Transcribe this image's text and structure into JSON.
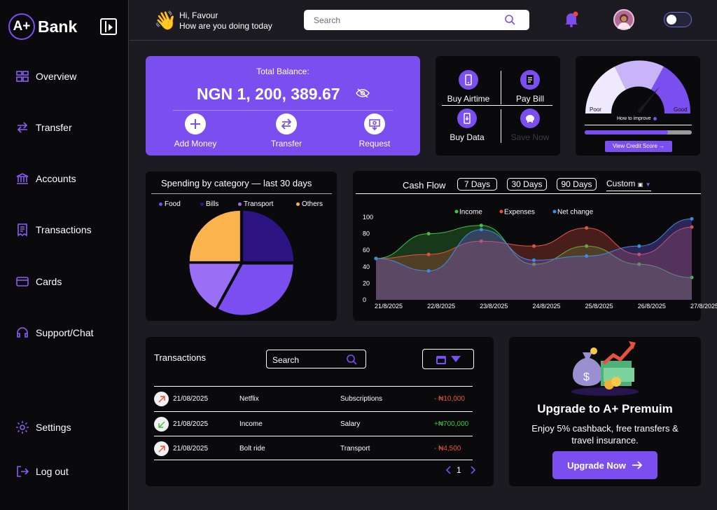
{
  "sidebar": {
    "logo_badge": "A+",
    "logo_text": "Bank",
    "items": [
      {
        "label": "Overview",
        "icon": "grid-icon"
      },
      {
        "label": "Transfer",
        "icon": "transfer-arrows-icon"
      },
      {
        "label": "Accounts",
        "icon": "bank-icon"
      },
      {
        "label": "Transactions",
        "icon": "receipt-icon"
      },
      {
        "label": "Cards",
        "icon": "card-icon"
      },
      {
        "label": "Support/Chat",
        "icon": "headset-icon"
      },
      {
        "label": "Settings",
        "icon": "gear-icon"
      },
      {
        "label": "Log out",
        "icon": "logout-icon"
      }
    ]
  },
  "header": {
    "greeting": "Hi, Favour",
    "subgreeting": "How are you doing today",
    "search_placeholder": "Search"
  },
  "balance": {
    "label": "Total Balance:",
    "amount": "NGN 1, 200, 389.67",
    "actions": [
      "Add Money",
      "Transfer",
      "Request"
    ]
  },
  "quick_actions": [
    "Buy Airtime",
    "Pay Bill",
    "Buy Data",
    "Save Now"
  ],
  "credit": {
    "poor": "Poor",
    "good": "Good",
    "hint": "How to improve",
    "button": "View Credit Score →",
    "score_fraction": 0.72,
    "bar_fraction": 0.78
  },
  "spending": {
    "title": "Spending by category — last 30 days",
    "legend": [
      "Food",
      "Bills",
      "Transport",
      "Others"
    ]
  },
  "cashflow": {
    "title": "Cash Flow",
    "ranges": [
      "7 Days",
      "30 Days",
      "90 Days"
    ],
    "custom": "Custom"
  },
  "transactions": {
    "title": "Transactions",
    "search_placeholder": "Search",
    "rows": [
      {
        "date": "21/08/2025",
        "name": "Netflix",
        "category": "Subscriptions",
        "amount": "- ₦10,000",
        "type": "out"
      },
      {
        "date": "21/08/2025",
        "name": "Income",
        "category": "Salary",
        "amount": "+₦700,000",
        "type": "in"
      },
      {
        "date": "21/08/2025",
        "name": "Bolt ride",
        "category": "Transport",
        "amount": "- ₦4,500",
        "type": "out"
      }
    ],
    "page": "1"
  },
  "promo": {
    "title": "Upgrade to A+ Premuim",
    "text": "Enjoy 5% cashback, free transfers & travel insurance.",
    "button": "Upgrade Now"
  },
  "chart_data": [
    {
      "type": "pie",
      "title": "Spending by category — last 30 days",
      "categories": [
        "Food",
        "Bills",
        "Transport",
        "Others"
      ],
      "values": [
        33,
        25,
        17,
        25
      ],
      "colors": [
        "#7b4ef0",
        "#2c1482",
        "#9b6ff5",
        "#fbb34d"
      ]
    },
    {
      "type": "line",
      "title": "Cash Flow",
      "x": [
        "21/8/2025",
        "22/8/2025",
        "23/8/2025",
        "24/8/2025",
        "25/8/2025",
        "26/8/2025",
        "27/8/2025"
      ],
      "ylim": [
        0,
        100
      ],
      "yticks": [
        0,
        20,
        40,
        60,
        80,
        100
      ],
      "series": [
        {
          "name": "Income",
          "color": "#3ec43e",
          "values": [
            50,
            80,
            90,
            43,
            65,
            43,
            27
          ]
        },
        {
          "name": "Expenses",
          "color": "#e5533f",
          "values": [
            50,
            55,
            71,
            65,
            87,
            55,
            88
          ]
        },
        {
          "name": "Net change",
          "color": "#3a8de0",
          "values": [
            50,
            35,
            85,
            48,
            53,
            65,
            98
          ]
        }
      ]
    }
  ]
}
